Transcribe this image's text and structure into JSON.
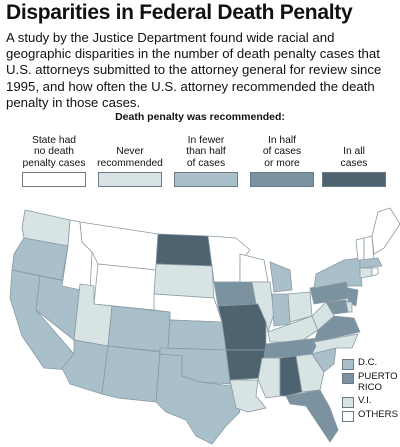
{
  "title": "Disparities in Federal Death Penalty",
  "intro": "A study by the Justice Department found wide racial and geographic disparities in the number of death penalty cases that U.S. attorneys submitted to the attorney general for review since 1995, and how often the U.S. attorney recommended the death penalty in those cases.",
  "legend": {
    "heading": "Death penalty was recommended:",
    "items": [
      {
        "key": "none",
        "label": [
          "State had",
          "no death",
          "penalty cases"
        ],
        "color": "#ffffff"
      },
      {
        "key": "never",
        "label": [
          "Never",
          "recommended"
        ],
        "color": "#d8e3e4"
      },
      {
        "key": "fewer",
        "label": [
          "In fewer",
          "than half",
          "of cases"
        ],
        "color": "#a9c0cb"
      },
      {
        "key": "half",
        "label": [
          "In half",
          "of cases",
          "or more"
        ],
        "color": "#7b93a0"
      },
      {
        "key": "all",
        "label": [
          "In all",
          "cases"
        ],
        "color": "#4e6370"
      }
    ]
  },
  "insets": [
    {
      "label": [
        "D.C."
      ],
      "category": "fewer"
    },
    {
      "label": [
        "PUERTO",
        "RICO"
      ],
      "category": "half"
    },
    {
      "label": [
        "V.I."
      ],
      "category": "never"
    },
    {
      "label": [
        "OTHERS"
      ],
      "category": "none"
    }
  ],
  "states": {
    "WA": "never",
    "OR": "fewer",
    "CA": "fewer",
    "NV": "fewer",
    "ID": "none",
    "MT": "none",
    "WY": "none",
    "UT": "never",
    "AZ": "fewer",
    "CO": "fewer",
    "NM": "fewer",
    "ND": "all",
    "SD": "never",
    "NE": "none",
    "KS": "fewer",
    "OK": "fewer",
    "TX": "fewer",
    "MN": "none",
    "IA": "half",
    "MO": "all",
    "AR": "all",
    "LA": "never",
    "WI": "none",
    "IL": "never",
    "MI": "fewer",
    "IN": "fewer",
    "OH": "never",
    "KY": "never",
    "TN": "half",
    "MS": "never",
    "AL": "all",
    "GA": "never",
    "FL": "half",
    "SC": "fewer",
    "NC": "never",
    "VA": "half",
    "WV": "never",
    "PA": "half",
    "NY": "fewer",
    "VT": "none",
    "NH": "none",
    "ME": "none",
    "MA": "fewer",
    "CT": "never",
    "NJ": "half",
    "MD": "half",
    "DE": "never",
    "RI": "none"
  }
}
